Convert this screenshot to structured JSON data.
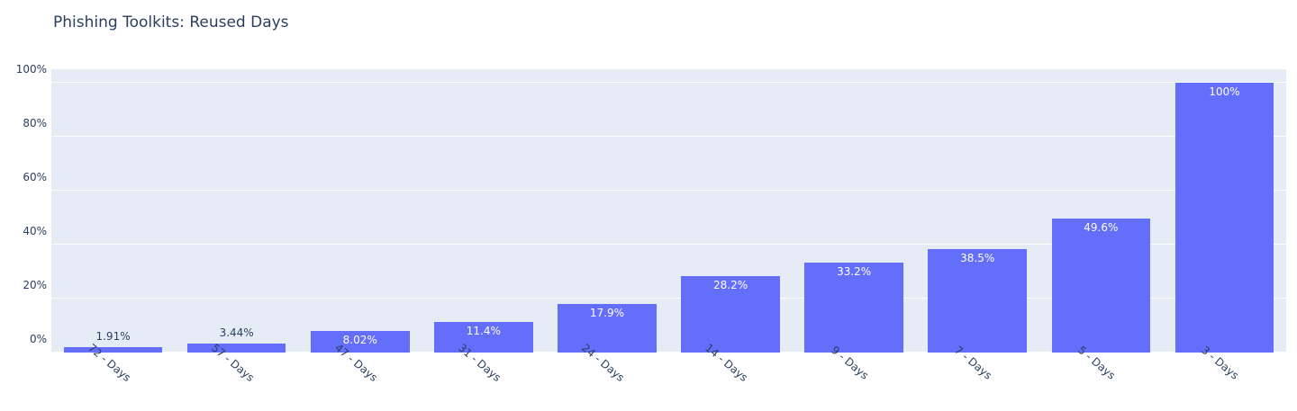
{
  "page": {
    "background": "#ffffff"
  },
  "chart_data": {
    "type": "bar",
    "title": "Phishing Toolkits: Reused Days",
    "categories": [
      "72 - Days",
      "57 - Days",
      "47 - Days",
      "31 - Days",
      "24 - Days",
      "14 - Days",
      "9 - Days",
      "7 - Days",
      "5 - Days",
      "3 - Days"
    ],
    "values": [
      1.91,
      3.44,
      8.02,
      11.4,
      17.9,
      28.2,
      33.2,
      38.5,
      49.6,
      100
    ],
    "value_labels": [
      "1.91%",
      "3.44%",
      "8.02%",
      "11.4%",
      "17.9%",
      "28.2%",
      "33.2%",
      "38.5%",
      "49.6%",
      "100%"
    ],
    "xlabel": "",
    "ylabel": "",
    "ylim": [
      0,
      100
    ],
    "yticks": {
      "values": [
        0,
        20,
        40,
        60,
        80,
        100
      ],
      "labels": [
        "0%",
        "20%",
        "40%",
        "60%",
        "80%",
        "100%"
      ]
    },
    "grid": true,
    "legend": "none",
    "xtick_angle_deg": 40,
    "colors": {
      "bar": "#636efa",
      "plot_background": "#e5ecf6",
      "gridline": "#ffffff",
      "text": "#2a3f5f",
      "value_label_inside": "#ffffff",
      "value_label_outside": "#2a3f5f",
      "page_background": "#ffffff"
    }
  }
}
